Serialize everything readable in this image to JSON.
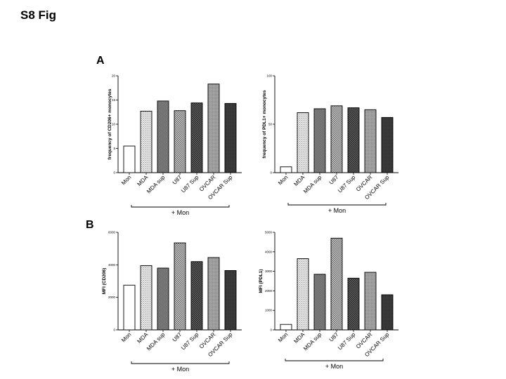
{
  "figure_title": "S8 Fig",
  "panel_letters": [
    "A",
    "B"
  ],
  "colors": {
    "white": "#ffffff",
    "light_dots": "#d9d9d9",
    "medium": "#7a7a7a",
    "checker_light": "#b8b8b8",
    "checker_dark": "#4a4a4a",
    "medium_light": "#9a9a9a",
    "dark": "#3a3a3a",
    "stroke": "#000000"
  },
  "chart_data": [
    {
      "type": "bar",
      "panel": "A",
      "ylabel": "frequency of CD206+ monocytes",
      "ylim": [
        0,
        20
      ],
      "yticks": [
        0,
        5,
        10,
        15,
        20
      ],
      "ytick_labels": [
        "0",
        "5",
        "10",
        "15",
        "20"
      ],
      "categories": [
        "Mon",
        "MDA",
        "MDA sup",
        "U87",
        "U87 Sup",
        "OVCAR",
        "OVCAR Sup"
      ],
      "values": [
        5.5,
        12.7,
        14.8,
        12.8,
        14.4,
        18.3,
        14.3
      ],
      "fills": [
        "white",
        "light_dots",
        "medium",
        "checker_light",
        "checker_dark",
        "medium_light",
        "dark"
      ],
      "bracket_label": "+ Mon"
    },
    {
      "type": "bar",
      "panel": "A",
      "ylabel": "frequency of PDL1+ monocytes",
      "ylim": [
        0,
        100
      ],
      "yticks": [
        0,
        50,
        100
      ],
      "ytick_labels": [
        "0",
        "50",
        "100"
      ],
      "categories": [
        "Mon",
        "MDA",
        "MDA sup",
        "U87",
        "U87 Sup",
        "OVCAR",
        "OVCAR Sup"
      ],
      "values": [
        6,
        62,
        66,
        69,
        67,
        65,
        57
      ],
      "fills": [
        "white",
        "light_dots",
        "medium",
        "checker_light",
        "checker_dark",
        "medium_light",
        "dark"
      ],
      "bracket_label": "+ Mon"
    },
    {
      "type": "bar",
      "panel": "B",
      "ylabel": "MFI (CD206)",
      "ylim": [
        0,
        6000
      ],
      "yticks": [
        0,
        2000,
        4000,
        6000
      ],
      "ytick_labels": [
        "0",
        "2000",
        "4000",
        "6000"
      ],
      "categories": [
        "Mon",
        "MDA",
        "MDA sup",
        "U87",
        "U87 Sup",
        "OVCAR",
        "OVCAR Sup"
      ],
      "values": [
        2750,
        3950,
        3800,
        5350,
        4200,
        4450,
        3650
      ],
      "fills": [
        "white",
        "light_dots",
        "medium",
        "checker_light",
        "checker_dark",
        "medium_light",
        "dark"
      ],
      "bracket_label": "+ Mon"
    },
    {
      "type": "bar",
      "panel": "B",
      "ylabel": "MFI (PDL1)",
      "ylim": [
        0,
        5000
      ],
      "yticks": [
        0,
        1000,
        2000,
        3000,
        4000,
        5000
      ],
      "ytick_labels": [
        "0",
        "1000",
        "2000",
        "3000",
        "4000",
        "5000"
      ],
      "categories": [
        "Mon",
        "MDA",
        "MDA sup",
        "U87",
        "U87 Sup",
        "OVCAR",
        "OVCAR Sup"
      ],
      "values": [
        280,
        3650,
        2850,
        4700,
        2650,
        2950,
        1800
      ],
      "fills": [
        "white",
        "light_dots",
        "medium",
        "checker_light",
        "checker_dark",
        "medium_light",
        "dark"
      ],
      "bracket_label": "+ Mon"
    }
  ]
}
